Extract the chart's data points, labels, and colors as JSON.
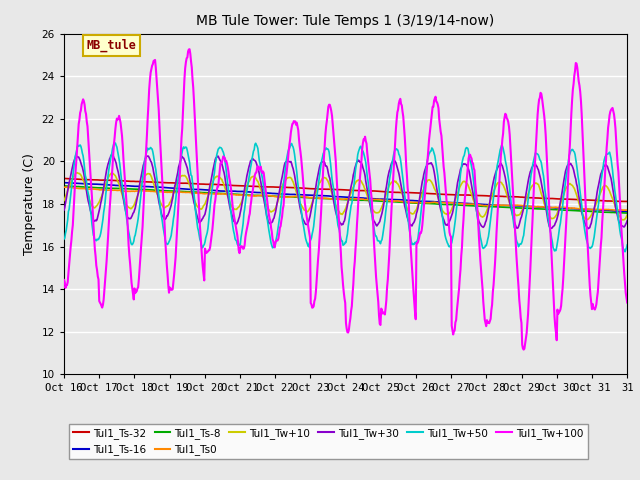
{
  "title": "MB Tule Tower: Tule Temps 1 (3/19/14-now)",
  "ylabel": "Temperature (C)",
  "ylim": [
    10,
    26
  ],
  "yticks": [
    10,
    12,
    14,
    16,
    18,
    20,
    22,
    24,
    26
  ],
  "n_days": 16,
  "xtick_labels": [
    "Oct 16",
    "Oct 17",
    "Oct 18",
    "Oct 19",
    "Oct 20",
    "Oct 21",
    "Oct 22",
    "Oct 23",
    "Oct 24",
    "Oct 25",
    "Oct 26",
    "Oct 27",
    "Oct 28",
    "Oct 29",
    "Oct 30",
    "Oct 31"
  ],
  "plot_bg_color": "#e8e8e8",
  "fig_bg_color": "#e8e8e8",
  "grid_color": "white",
  "legend_box_facecolor": "#ffffcc",
  "legend_box_edgecolor": "#ccaa00",
  "series_order": [
    "Tul1_Ts-32",
    "Tul1_Ts-16",
    "Tul1_Ts-8",
    "Tul1_Ts0",
    "Tul1_Tw+10",
    "Tul1_Tw+30",
    "Tul1_Tw+50",
    "Tul1_Tw+100"
  ],
  "series": {
    "Tul1_Ts-32": {
      "color": "#cc0000",
      "lw": 1.2
    },
    "Tul1_Ts-16": {
      "color": "#0000cc",
      "lw": 1.2
    },
    "Tul1_Ts-8": {
      "color": "#00aa00",
      "lw": 1.2
    },
    "Tul1_Ts0": {
      "color": "#ff8800",
      "lw": 1.2
    },
    "Tul1_Tw+10": {
      "color": "#cccc00",
      "lw": 1.2
    },
    "Tul1_Tw+30": {
      "color": "#8800cc",
      "lw": 1.2
    },
    "Tul1_Tw+50": {
      "color": "#00cccc",
      "lw": 1.2
    },
    "Tul1_Tw+100": {
      "color": "#ff00ff",
      "lw": 1.5
    }
  },
  "legend_row1": [
    "Tul1_Ts-32",
    "Tul1_Ts-16",
    "Tul1_Ts-8",
    "Tul1_Ts0",
    "Tul1_Tw+10",
    "Tul1_Tw+30"
  ],
  "legend_row2": [
    "Tul1_Tw+50",
    "Tul1_Tw+100"
  ]
}
